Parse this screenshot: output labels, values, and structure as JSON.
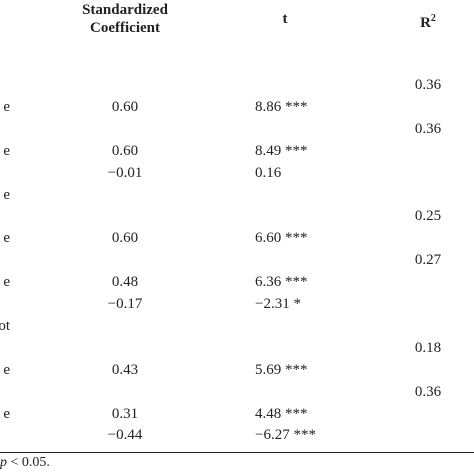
{
  "table": {
    "header": {
      "coefficient": [
        "Standardized",
        "Coefficient"
      ],
      "t": "t",
      "r2": {
        "base": "R",
        "sup": "2"
      }
    },
    "rows": [
      {
        "r2": "0.36"
      },
      {
        "label": "e",
        "coef": "0.60",
        "t": "8.86 ***"
      },
      {
        "r2": "0.36"
      },
      {
        "label": "e",
        "coef": "0.60",
        "t": "8.49 ***"
      },
      {
        "coef": "−0.01",
        "t": "0.16"
      },
      {
        "label": "e"
      },
      {
        "r2": "0.25"
      },
      {
        "label": "e",
        "coef": "0.60",
        "t": "6.60 ***"
      },
      {
        "r2": "0.27"
      },
      {
        "label": "e",
        "coef": "0.48",
        "t": "6.36 ***"
      },
      {
        "coef": "−0.17",
        "t": "−2.31 *"
      },
      {
        "label": "ot"
      },
      {
        "r2": "0.18"
      },
      {
        "label": "e",
        "coef": "0.43",
        "t": "5.69 ***"
      },
      {
        "r2": "0.36"
      },
      {
        "label": "e",
        "coef": "0.31",
        "t": "4.48 ***"
      },
      {
        "coef": "−0.44",
        "t": "−6.27 ***"
      }
    ]
  },
  "footnote": {
    "symbol": "p",
    "text": " < 0.05."
  }
}
